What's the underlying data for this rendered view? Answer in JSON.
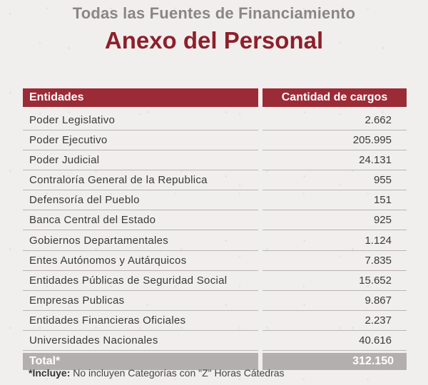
{
  "header": {
    "supertitle": "Todas las Fuentes de Financiamiento",
    "title": "Anexo del Personal"
  },
  "table": {
    "columns": [
      "Entidades",
      "Cantidad de cargos"
    ],
    "rows": [
      {
        "entity": "Poder Legislativo",
        "count": "2.662"
      },
      {
        "entity": "Poder Ejecutivo",
        "count": "205.995"
      },
      {
        "entity": "Poder Judicial",
        "count": "24.131"
      },
      {
        "entity": "Contraloría General de la Republica",
        "count": "955"
      },
      {
        "entity": "Defensoría del Pueblo",
        "count": "151"
      },
      {
        "entity": "Banca Central del Estado",
        "count": "925"
      },
      {
        "entity": "Gobiernos Departamentales",
        "count": "1.124"
      },
      {
        "entity": "Entes Autónomos y Autárquicos",
        "count": "7.835"
      },
      {
        "entity": "Entidades Públicas de Seguridad Social",
        "count": "15.652"
      },
      {
        "entity": "Empresas Publicas",
        "count": "9.867"
      },
      {
        "entity": "Entidades Financieras Oficiales",
        "count": "2.237"
      },
      {
        "entity": "Universidades Nacionales",
        "count": "40.616"
      }
    ],
    "total_label": "Total*",
    "total_value": "312.150"
  },
  "footnote": {
    "label": "*Incluye:",
    "text": " No incluyen Categorías con \"Z\" Horas Cátedras"
  }
}
